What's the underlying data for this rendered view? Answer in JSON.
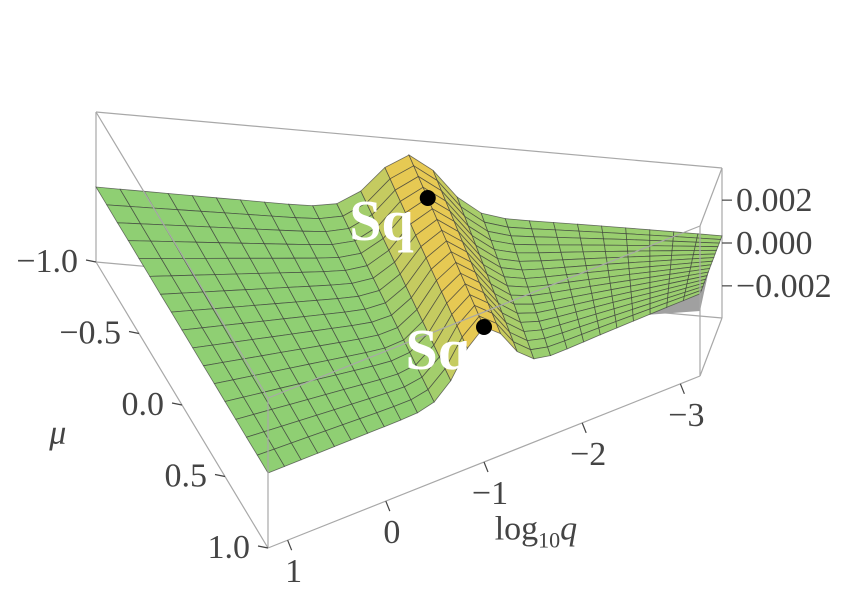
{
  "chart_data": {
    "type": "surface3d",
    "title": "",
    "axes": {
      "x": {
        "label_main": "log",
        "label_sub": "10",
        "label_var": "q",
        "range": [
          -3.2,
          1.2
        ],
        "ticks": [
          {
            "value": -3,
            "label": "−3"
          },
          {
            "value": -2,
            "label": "−2"
          },
          {
            "value": -1,
            "label": "−1"
          },
          {
            "value": 0,
            "label": "0"
          },
          {
            "value": 1,
            "label": "1"
          }
        ]
      },
      "y": {
        "label": "μ",
        "range": [
          -1,
          1
        ],
        "ticks": [
          {
            "value": -1,
            "label": "−1.0"
          },
          {
            "value": -0.5,
            "label": "−0.5"
          },
          {
            "value": 0,
            "label": "0.0"
          },
          {
            "value": 0.5,
            "label": "0.5"
          },
          {
            "value": 1,
            "label": "1.0"
          }
        ]
      },
      "z": {
        "label": "",
        "range": [
          -0.0035,
          0.0035
        ],
        "ticks": [
          {
            "value": 0.002,
            "label": "0.002"
          },
          {
            "value": 0,
            "label": "0.000"
          },
          {
            "value": -0.002,
            "label": "−0.002"
          }
        ]
      }
    },
    "surface": {
      "ridge_center_log10q": -1.0,
      "ridge_width": 0.32,
      "ridge_height": 0.0028,
      "baseline": 0.0,
      "dip_height": -0.0004
    },
    "annotations": [
      {
        "label": "Sq",
        "log10q": -1.0,
        "mu": -0.5,
        "z": 0.0028
      },
      {
        "label": "Sq",
        "log10q": -1.0,
        "mu": 1.0,
        "z": 0.0028
      }
    ],
    "colors": {
      "low": "#8fcf73",
      "high": "#f2c84f",
      "mesh": "#3a3a3a",
      "shadow": "#a0a0a0"
    },
    "box": "on",
    "grid": "off"
  }
}
